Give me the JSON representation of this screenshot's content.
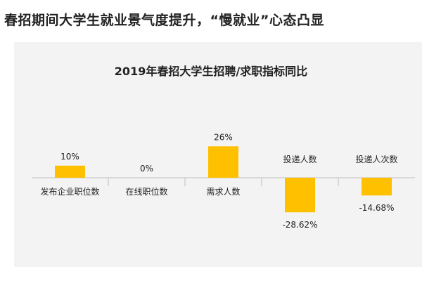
{
  "headline": "春招期间大学生就业景气度提升，“慢就业”心态凸显",
  "chart_data": {
    "type": "bar",
    "title": "2019年春招大学生招聘/求职指标同比",
    "categories": [
      "发布企业职位数",
      "在线职位数",
      "需求人数",
      "投递人数",
      "投递人次数"
    ],
    "values": [
      10,
      0,
      26,
      -28.62,
      -14.68
    ],
    "value_labels": [
      "10%",
      "0%",
      "26%",
      "-28.62%",
      "-14.68%"
    ],
    "unit": "%",
    "ylim": [
      -30,
      30
    ],
    "bar_color": "#FFC000",
    "grid": false,
    "legend": "none"
  }
}
